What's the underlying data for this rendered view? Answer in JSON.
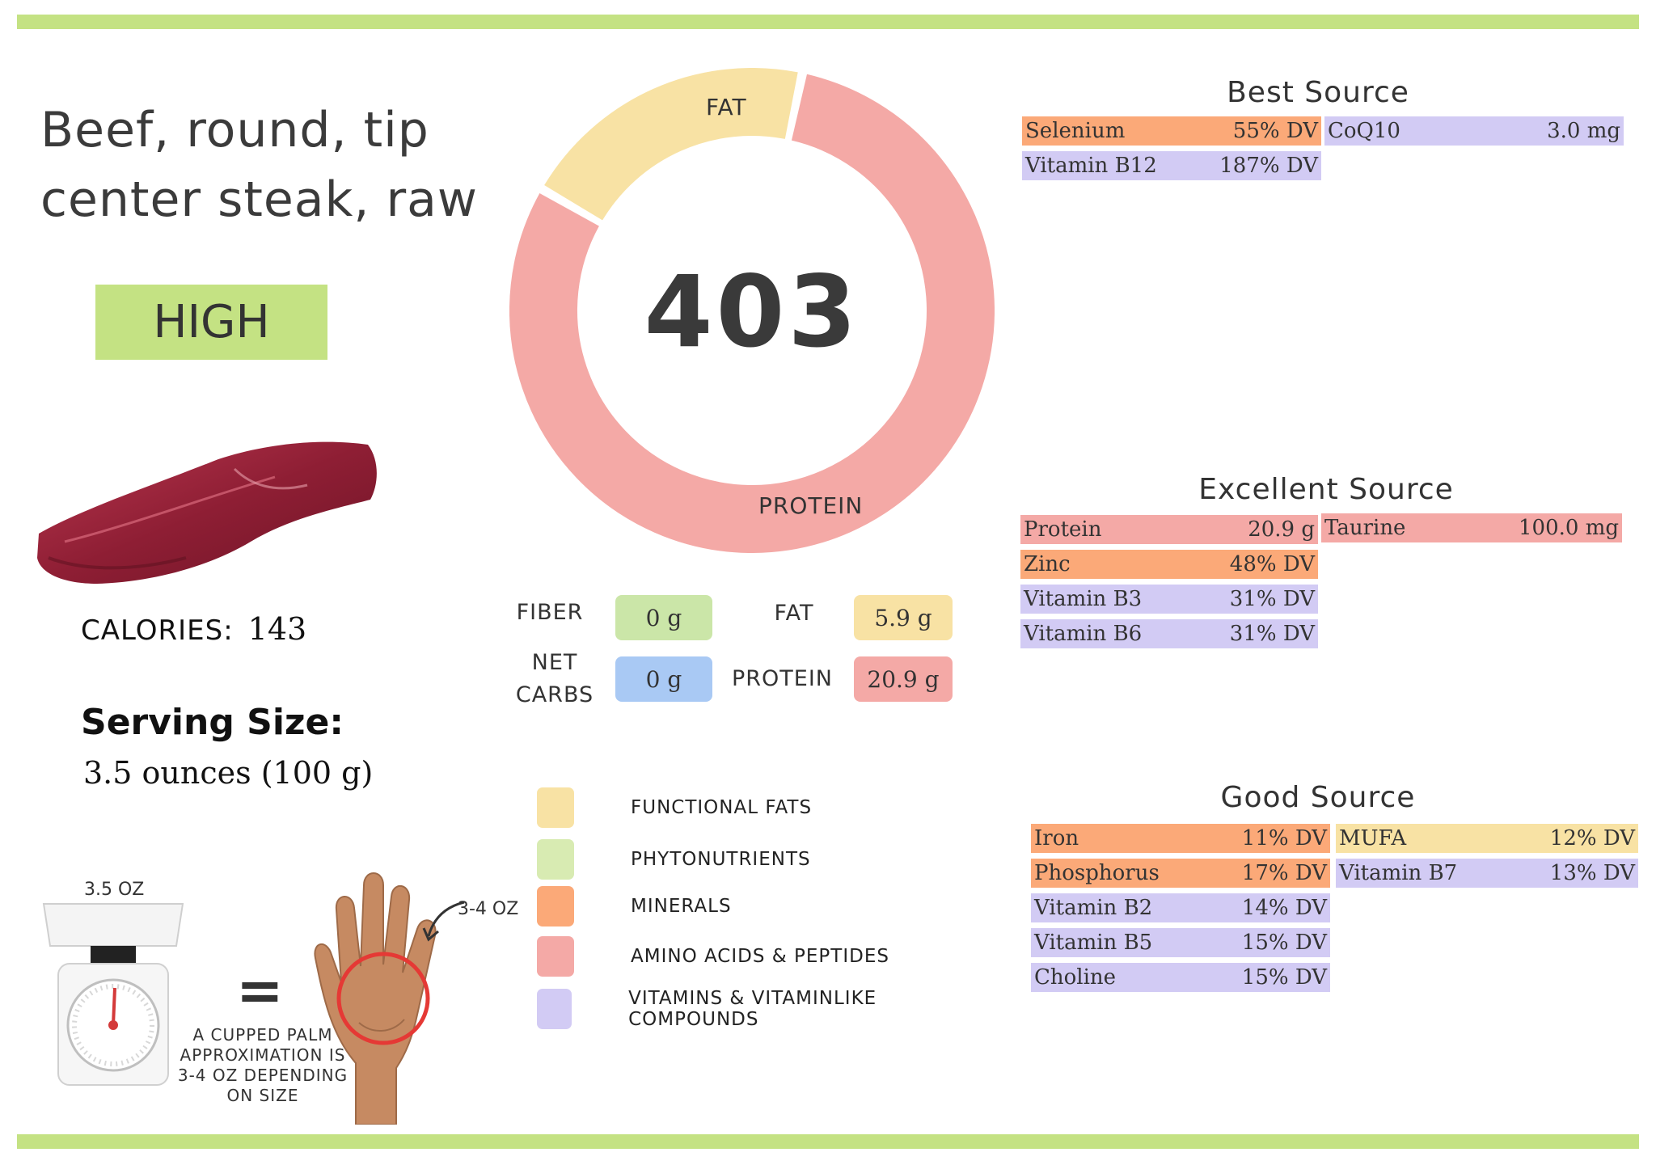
{
  "food": {
    "name_line1": "Beef, round, tip",
    "name_line2": "center steak, raw",
    "rating": "HIGH"
  },
  "calories": {
    "label": "CALORIES:",
    "value": "143"
  },
  "serving": {
    "heading": "Serving Size:",
    "value": "3.5 ounces (100 g)"
  },
  "donut": {
    "center_value": "403",
    "fat_label": "FAT",
    "protein_label": "PROTEIN",
    "fat_fraction": 0.2,
    "protein_fraction": 0.8,
    "fat_color": "#f8e2a4",
    "protein_color": "#f4a9a6"
  },
  "macros": {
    "fiber": {
      "label": "FIBER",
      "value": "0 g",
      "color": "#cbe6a8"
    },
    "net_carbs": {
      "label_line1": "NET",
      "label_line2": "CARBS",
      "value": "0 g",
      "color": "#a9c9f4"
    },
    "fat": {
      "label": "FAT",
      "value": "5.9 g",
      "color": "#f8e2a4"
    },
    "protein": {
      "label": "PROTEIN",
      "value": "20.9 g",
      "color": "#f4a9a6"
    }
  },
  "legend": [
    {
      "label": "FUNCTIONAL  FATS",
      "color": "#f8e2a4"
    },
    {
      "label": "PHYTONUTRIENTS",
      "color": "#d8ebb2"
    },
    {
      "label": "MINERALS",
      "color": "#fba978"
    },
    {
      "label": "AMINO ACIDS & PEPTIDES",
      "color": "#f4a9a6"
    },
    {
      "label": "VITAMINS & VITAMINLIKE COMPOUNDS",
      "color": "#d2cbf4"
    }
  ],
  "best_source": {
    "title": "Best Source",
    "left": [
      {
        "name": "Selenium",
        "value": "55% DV",
        "color": "#fba978"
      },
      {
        "name": "Vitamin B12",
        "value": "187% DV",
        "color": "#d2cbf4"
      }
    ],
    "right": [
      {
        "name": "CoQ10",
        "value": "3.0 mg",
        "color": "#d2cbf4"
      }
    ]
  },
  "excellent_source": {
    "title": "Excellent Source",
    "left": [
      {
        "name": "Protein",
        "value": "20.9 g",
        "color": "#f4a9a6"
      },
      {
        "name": "Zinc",
        "value": "48% DV",
        "color": "#fba978"
      },
      {
        "name": "Vitamin B3",
        "value": "31% DV",
        "color": "#d2cbf4"
      },
      {
        "name": "Vitamin B6",
        "value": "31% DV",
        "color": "#d2cbf4"
      }
    ],
    "right": [
      {
        "name": "Taurine",
        "value": "100.0 mg",
        "color": "#f4a9a6"
      }
    ]
  },
  "good_source": {
    "title": "Good Source",
    "left": [
      {
        "name": "Iron",
        "value": "11% DV",
        "color": "#fba978"
      },
      {
        "name": "Phosphorus",
        "value": "17% DV",
        "color": "#fba978"
      },
      {
        "name": "Vitamin B2",
        "value": "14% DV",
        "color": "#d2cbf4"
      },
      {
        "name": "Vitamin B5",
        "value": "15% DV",
        "color": "#d2cbf4"
      },
      {
        "name": "Choline",
        "value": "15% DV",
        "color": "#d2cbf4"
      }
    ],
    "right": [
      {
        "name": "MUFA",
        "value": "12% DV",
        "color": "#f8e2a4"
      },
      {
        "name": "Vitamin B7",
        "value": "13% DV",
        "color": "#d2cbf4"
      }
    ]
  },
  "portion_guide": {
    "scale_label": "3.5 OZ",
    "equals": "=",
    "palm_label": "3-4 OZ",
    "note": "A CUPPED PALM APPROXIMATION IS 3-4 OZ DEPENDING ON SIZE"
  },
  "colors": {
    "accent_bar": "#c4e283",
    "rating_bg": "#c4e283"
  }
}
